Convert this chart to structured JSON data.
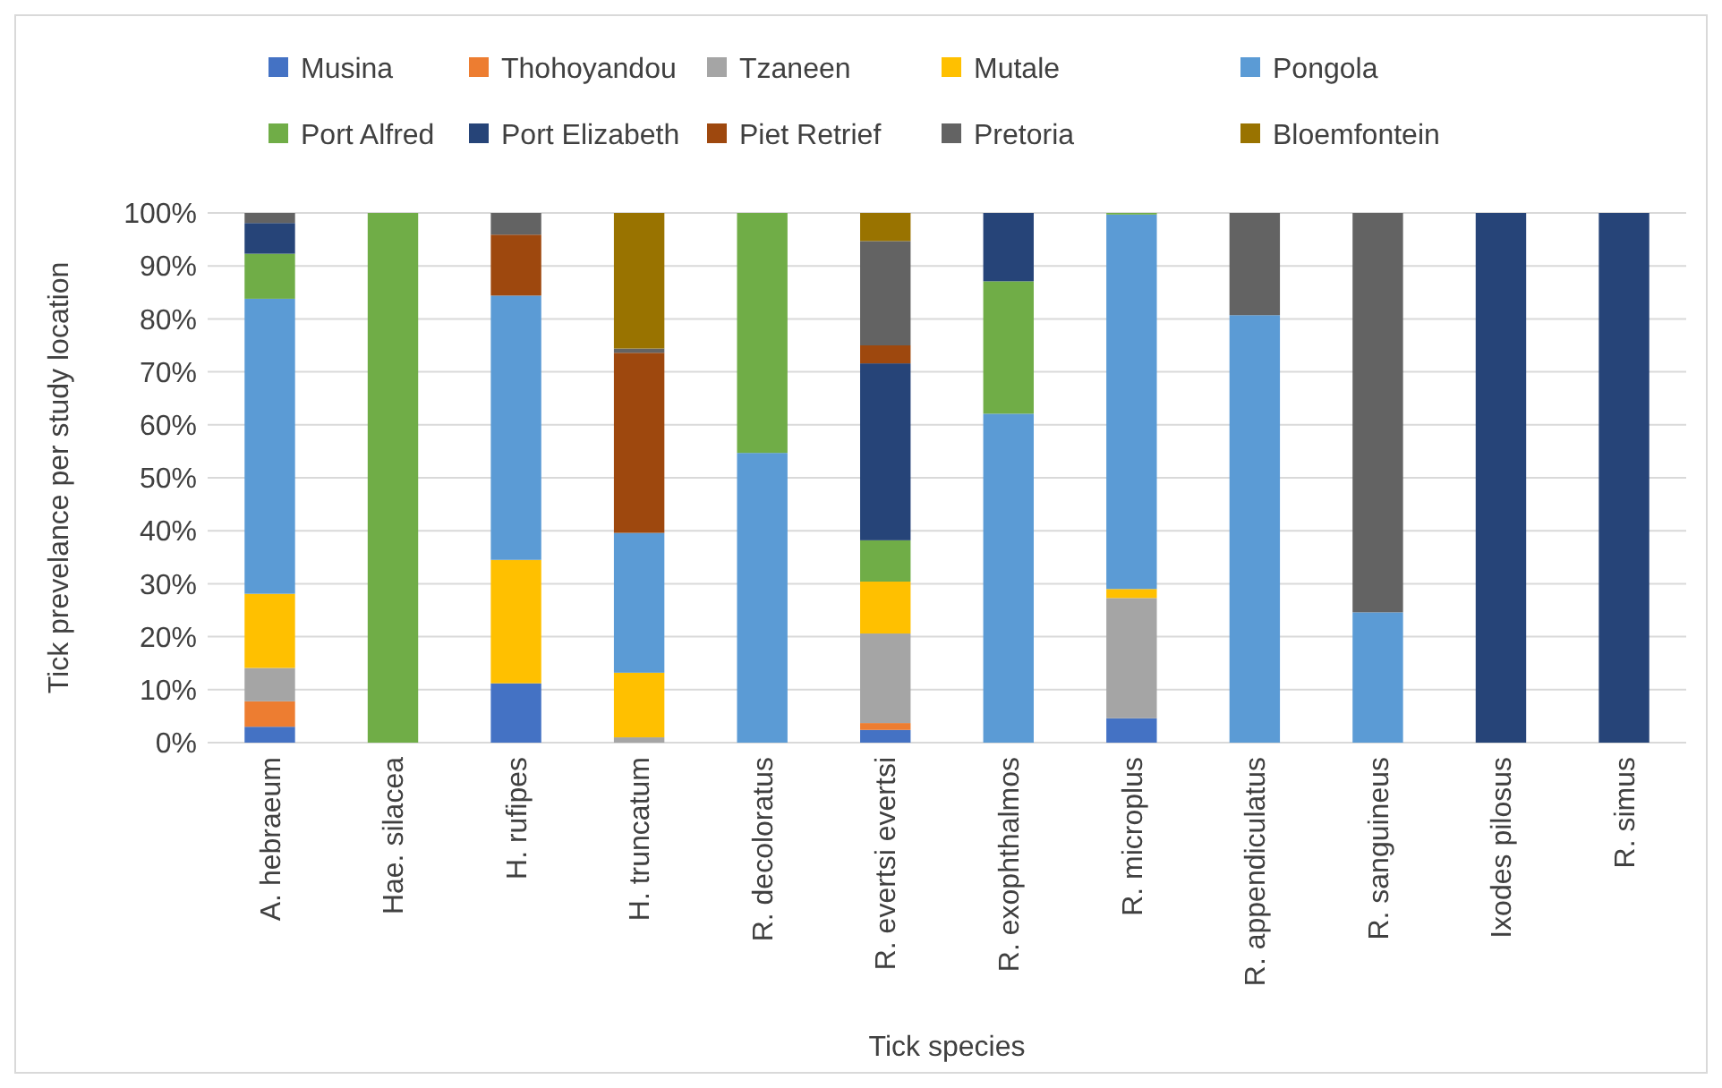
{
  "chart_data": {
    "type": "bar",
    "stacked": true,
    "xlabel": "Tick species",
    "ylabel": "Tick prevelance per study location",
    "categories": [
      "A. hebraeum",
      "Hae. silacea",
      "H. rufipes",
      "H. truncatum",
      "R. decoloratus",
      "R. evertsi evertsi",
      "R. exophthalmos",
      "R. microplus",
      "R. appendiculatus",
      "R. sanguineus",
      "Ixodes pilosus",
      "R. simus"
    ],
    "series": [
      {
        "name": "Musina",
        "color": "#4472c4",
        "values": [
          3.0,
          0,
          11.2,
          0,
          0,
          2.4,
          0,
          4.6,
          0,
          0,
          0,
          0
        ]
      },
      {
        "name": "Thohoyandou",
        "color": "#ed7d31",
        "values": [
          4.8,
          0,
          0,
          0,
          0,
          1.3,
          0,
          0,
          0,
          0,
          0,
          0
        ]
      },
      {
        "name": "Tzaneen",
        "color": "#a5a5a5",
        "values": [
          6.3,
          0,
          0,
          1.0,
          0,
          16.9,
          0,
          22.7,
          0,
          0,
          0,
          0
        ]
      },
      {
        "name": "Mutale",
        "color": "#ffc000",
        "values": [
          14.0,
          0,
          23.3,
          12.2,
          0,
          9.8,
          0,
          1.7,
          0,
          0,
          0,
          0
        ]
      },
      {
        "name": "Pongola",
        "color": "#5b9bd5",
        "values": [
          55.7,
          0,
          49.9,
          26.4,
          54.7,
          0,
          62.1,
          70.7,
          80.7,
          24.6,
          0,
          0
        ]
      },
      {
        "name": "Port Alfred",
        "color": "#70ad47",
        "values": [
          8.5,
          100,
          0,
          0,
          45.3,
          7.8,
          25.0,
          0.3,
          0,
          0,
          0,
          0
        ]
      },
      {
        "name": "Port Elizabeth",
        "color": "#264478",
        "values": [
          5.8,
          0,
          0,
          0,
          0,
          33.4,
          12.9,
          0,
          0,
          0,
          100,
          100
        ]
      },
      {
        "name": "Piet Retrief",
        "color": "#9e480e",
        "values": [
          0,
          0,
          11.5,
          34.0,
          0,
          3.4,
          0,
          0,
          0,
          0,
          0,
          0
        ]
      },
      {
        "name": "Pretoria",
        "color": "#636363",
        "values": [
          1.9,
          0,
          4.1,
          0.8,
          0,
          19.7,
          0,
          0,
          19.3,
          75.4,
          0,
          0
        ]
      },
      {
        "name": "Bloemfontein",
        "color": "#997300",
        "values": [
          0,
          0,
          0,
          25.6,
          0,
          5.3,
          0,
          0,
          0,
          0,
          0,
          0
        ]
      }
    ],
    "ylim": [
      0,
      100
    ],
    "yticks": [
      {
        "value": 0,
        "label": "0%"
      },
      {
        "value": 10,
        "label": "10%"
      },
      {
        "value": 20,
        "label": "20%"
      },
      {
        "value": 30,
        "label": "30%"
      },
      {
        "value": 40,
        "label": "40%"
      },
      {
        "value": 50,
        "label": "50%"
      },
      {
        "value": 60,
        "label": "60%"
      },
      {
        "value": 70,
        "label": "70%"
      },
      {
        "value": 80,
        "label": "80%"
      },
      {
        "value": 90,
        "label": "90%"
      },
      {
        "value": 100,
        "label": "100%"
      }
    ],
    "grid": "y",
    "legend": "top"
  }
}
